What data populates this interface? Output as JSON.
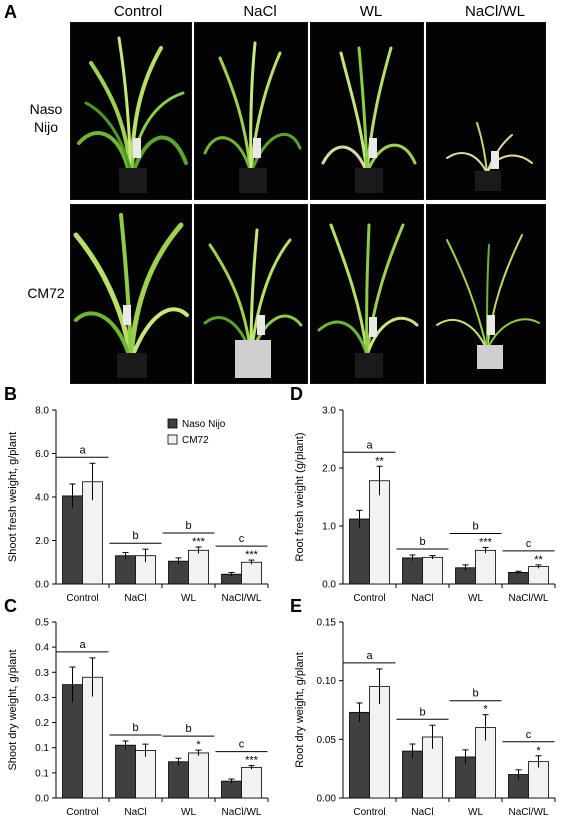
{
  "panel_a": {
    "letter": "A",
    "columns": [
      "Control",
      "NaCl",
      "WL",
      "NaCl/WL"
    ],
    "rows": [
      {
        "label_line1": "Naso",
        "label_line2": "Nijo"
      },
      {
        "label_line1": "CM72",
        "label_line2": ""
      }
    ]
  },
  "legend": {
    "series1": "Naso Nijo",
    "series2": "CM72"
  },
  "colors": {
    "naso": "#404040",
    "cm72": "#f2f2f2",
    "photo_bg": "#030303",
    "plant_light": "#b8e068",
    "plant_dark": "#3f8f1f",
    "plant_pale": "#dcd9a4"
  },
  "chart_data": [
    {
      "id": "B",
      "type": "bar",
      "letter": "B",
      "categories": [
        "Control",
        "NaCl",
        "WL",
        "NaCl/WL"
      ],
      "series": [
        {
          "name": "Naso Nijo",
          "values": [
            4.05,
            1.3,
            1.05,
            0.45
          ],
          "errors": [
            0.55,
            0.15,
            0.15,
            0.08
          ]
        },
        {
          "name": "CM72",
          "values": [
            4.7,
            1.3,
            1.55,
            1.0
          ],
          "errors": [
            0.85,
            0.3,
            0.15,
            0.1
          ]
        }
      ],
      "stars": [
        "",
        "",
        "***",
        "***"
      ],
      "groups": [
        "a",
        "b",
        "b",
        "c"
      ],
      "ylabel": "Shoot fresh weight, g/plant",
      "ylim": [
        0,
        8
      ],
      "yticks": [
        "0.0",
        "2.0",
        "4.0",
        "6.0",
        "8.0"
      ],
      "show_legend": true
    },
    {
      "id": "D",
      "type": "bar",
      "letter": "D",
      "categories": [
        "Control",
        "NaCl",
        "WL",
        "NaCl/WL"
      ],
      "series": [
        {
          "name": "Naso Nijo",
          "values": [
            1.12,
            0.45,
            0.28,
            0.2
          ],
          "errors": [
            0.15,
            0.05,
            0.05,
            0.02
          ]
        },
        {
          "name": "CM72",
          "values": [
            1.78,
            0.46,
            0.58,
            0.3
          ],
          "errors": [
            0.25,
            0.03,
            0.05,
            0.03
          ]
        }
      ],
      "stars": [
        "**",
        "",
        "***",
        "**"
      ],
      "groups": [
        "a",
        "b",
        "b",
        "c"
      ],
      "ylabel": "Root fresh weight (g/plant)",
      "ylim": [
        0,
        3
      ],
      "yticks": [
        "0.0",
        "1.0",
        "2.0",
        "3.0"
      ],
      "show_legend": false
    },
    {
      "id": "C",
      "type": "bar",
      "letter": "C",
      "categories": [
        "Control",
        "NaCl",
        "WL",
        "NaCl/WL"
      ],
      "series": [
        {
          "name": "Naso Nijo",
          "values": [
            0.322,
            0.15,
            0.103,
            0.048
          ],
          "errors": [
            0.05,
            0.012,
            0.01,
            0.006
          ]
        },
        {
          "name": "CM72",
          "values": [
            0.343,
            0.135,
            0.128,
            0.087
          ],
          "errors": [
            0.055,
            0.018,
            0.008,
            0.005
          ]
        }
      ],
      "stars": [
        "",
        "",
        "*",
        "***"
      ],
      "groups": [
        "a",
        "b",
        "b",
        "c"
      ],
      "ylabel": "Shoot dry weight, g/plant",
      "ylim": [
        0,
        0.5
      ],
      "yticks": [
        "0.0",
        "0.1",
        "0.1",
        "0.2",
        "0.3",
        "0.3",
        "0.4",
        "0.5"
      ],
      "show_legend": false
    },
    {
      "id": "E",
      "type": "bar",
      "letter": "E",
      "categories": [
        "Control",
        "NaCl",
        "WL",
        "NaCl/WL"
      ],
      "series": [
        {
          "name": "Naso Nijo",
          "values": [
            0.073,
            0.04,
            0.035,
            0.02
          ],
          "errors": [
            0.008,
            0.006,
            0.006,
            0.004
          ]
        },
        {
          "name": "CM72",
          "values": [
            0.095,
            0.052,
            0.06,
            0.031
          ],
          "errors": [
            0.015,
            0.01,
            0.011,
            0.005
          ]
        }
      ],
      "stars": [
        "",
        "",
        "*",
        "*"
      ],
      "groups": [
        "a",
        "b",
        "b",
        "c"
      ],
      "ylabel": "Root dry weight, g/plant",
      "ylim": [
        0,
        0.15
      ],
      "yticks": [
        "0.00",
        "0.05",
        "0.10",
        "0.15"
      ],
      "show_legend": false
    }
  ]
}
